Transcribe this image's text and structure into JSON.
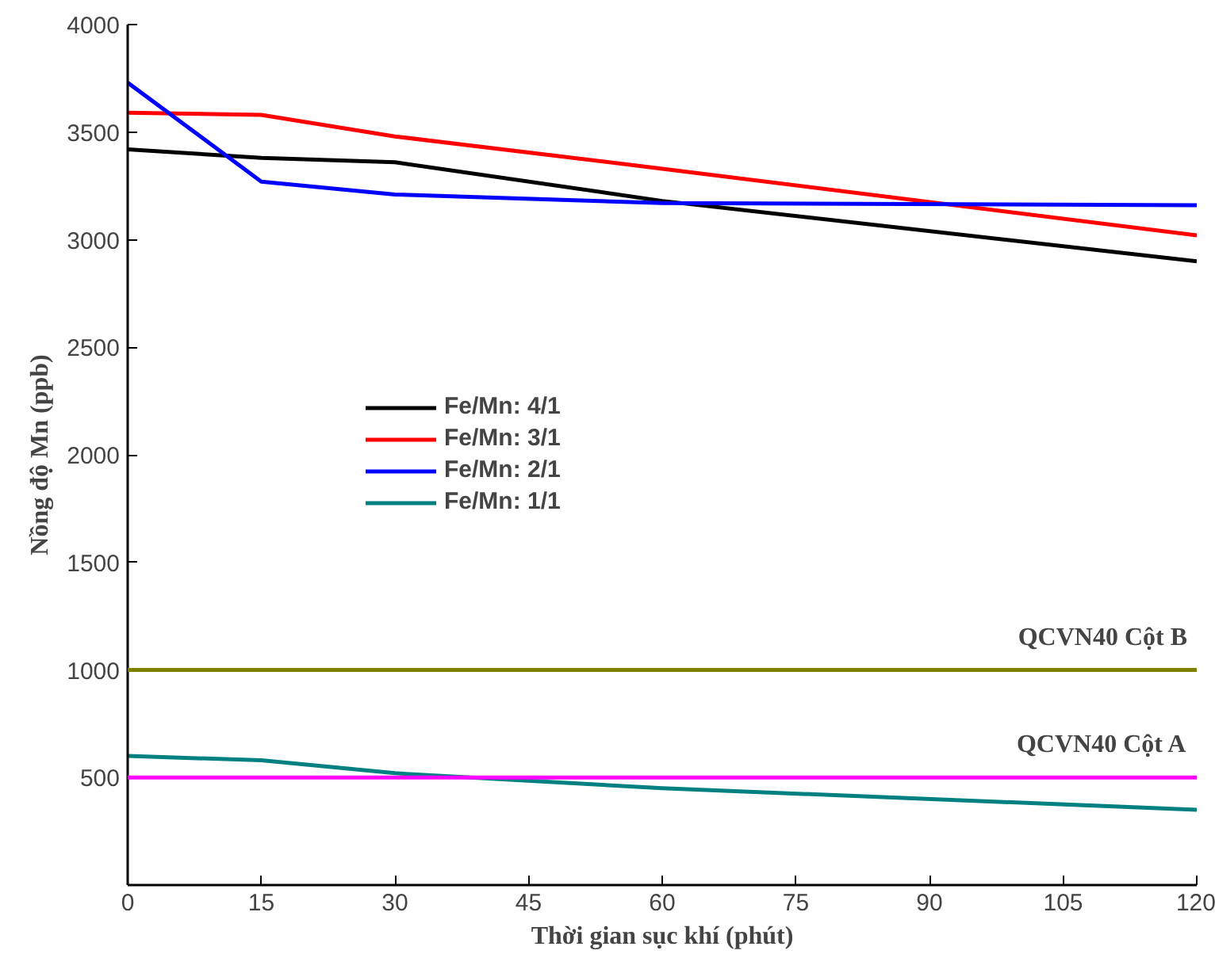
{
  "chart_data": {
    "type": "line",
    "xlabel": "Thời gian sục khí (phút)",
    "ylabel": "Nồng độ Mn (ppb)",
    "x": [
      0,
      15,
      30,
      60,
      120
    ],
    "series": [
      {
        "name": "Fe/Mn: 4/1",
        "color": "#000000",
        "values": [
          3420,
          3380,
          3360,
          3180,
          2900
        ]
      },
      {
        "name": "Fe/Mn: 3/1",
        "color": "#ff0000",
        "values": [
          3590,
          3580,
          3480,
          3330,
          3020
        ]
      },
      {
        "name": "Fe/Mn: 2/1",
        "color": "#0000ff",
        "values": [
          3730,
          3270,
          3210,
          3170,
          3160
        ]
      },
      {
        "name": "Fe/Mn: 1/1",
        "color": "#008080",
        "values": [
          600,
          580,
          520,
          450,
          350
        ]
      }
    ],
    "xlim": [
      0,
      120
    ],
    "xticks": [
      0,
      15,
      30,
      45,
      60,
      75,
      90,
      105,
      120
    ],
    "ylim": [
      0,
      4000
    ],
    "yticks": [
      500,
      1000,
      1500,
      2000,
      2500,
      3000,
      3500,
      4000
    ],
    "ref_lines": [
      {
        "axis": "y",
        "value": 1000,
        "label": "QCVN40 Cột B",
        "color": "#808000"
      },
      {
        "axis": "y",
        "value": 500,
        "label": "QCVN40 Cột A",
        "color": "#ff00ff"
      }
    ],
    "legend": "left",
    "grid": false,
    "marker": "none",
    "line_style": "solid"
  }
}
